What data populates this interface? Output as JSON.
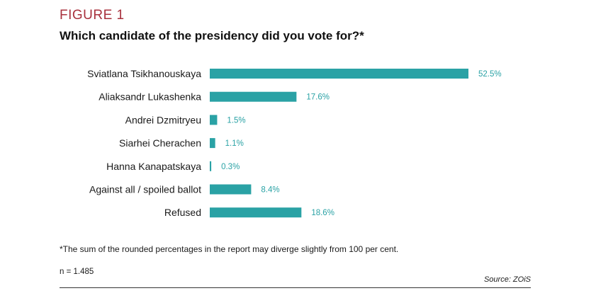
{
  "figure": {
    "label": "FIGURE 1",
    "title": "Which candidate of the presidency did you vote for?*",
    "footnote": "*The sum of the rounded percentages in the report may diverge slightly from 100 per cent.",
    "sample_size": "n = 1.485",
    "source": "Source: ZOiS"
  },
  "colors": {
    "bar": "#2aa2a5",
    "value_text": "#2aa2a5",
    "accent": "#a8313d"
  },
  "chart_data": {
    "type": "bar",
    "orientation": "horizontal",
    "title": "Which candidate of the presidency did you vote for?*",
    "categories": [
      "Sviatlana Tsikhanouskaya",
      "Aliaksandr Lukashenka",
      "Andrei Dzmitryeu",
      "Siarhei Cherachen",
      "Hanna Kanapatskaya",
      "Against all / spoiled ballot",
      "Refused"
    ],
    "values": [
      52.5,
      17.6,
      1.5,
      1.1,
      0.3,
      8.4,
      18.6
    ],
    "value_labels": [
      "52.5%",
      "17.6%",
      "1.5%",
      "1.1%",
      "0.3%",
      "8.4%",
      "18.6%"
    ],
    "unit": "%",
    "xlim": [
      0,
      52.5
    ],
    "xlabel": "",
    "ylabel": "",
    "grid": false,
    "legend": "none"
  }
}
